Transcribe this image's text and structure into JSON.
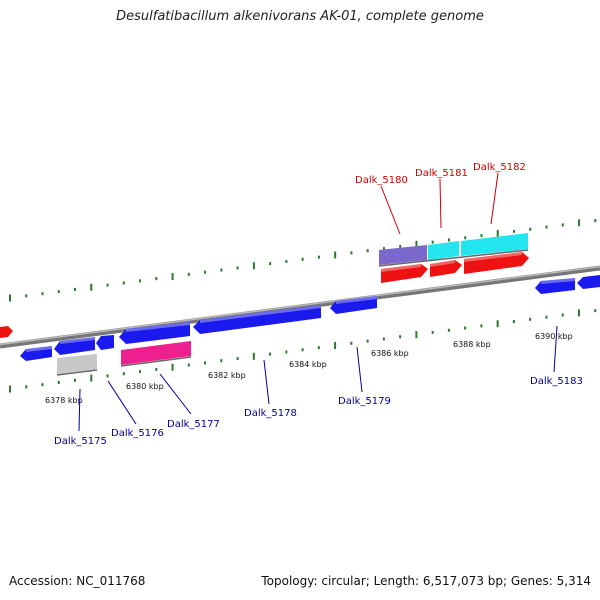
{
  "title": "Desulfatibacillum alkenivorans AK-01, complete genome",
  "footer": {
    "accession": "Accession: NC_011768",
    "summary": "Topology: circular; Length: 6,517,073 bp; Genes: 5,314"
  },
  "colors": {
    "backbone": "#8a8a8a",
    "tick": "#2a7a2a",
    "gene_forward_label": "#cc0000",
    "gene_reverse_label": "#000099",
    "blue": "#1a1aee",
    "red": "#ee1111",
    "cyan": "#22e5ee",
    "slate": "#7b68cc",
    "pink": "#ee1f8f",
    "gray": "#c8c8c8"
  },
  "scale_labels": [
    "6378 kbp",
    "6380 kbp",
    "6382 kbp",
    "6384 kbp",
    "6386 kbp",
    "6388 kbp",
    "6390 kbp"
  ],
  "genes_top": [
    {
      "name": "Dalk_5180"
    },
    {
      "name": "Dalk_5181"
    },
    {
      "name": "Dalk_5182"
    }
  ],
  "genes_bottom": [
    {
      "name": "Dalk_5175"
    },
    {
      "name": "Dalk_5176"
    },
    {
      "name": "Dalk_5177"
    },
    {
      "name": "Dalk_5178"
    },
    {
      "name": "Dalk_5179"
    },
    {
      "name": "Dalk_5183"
    }
  ]
}
